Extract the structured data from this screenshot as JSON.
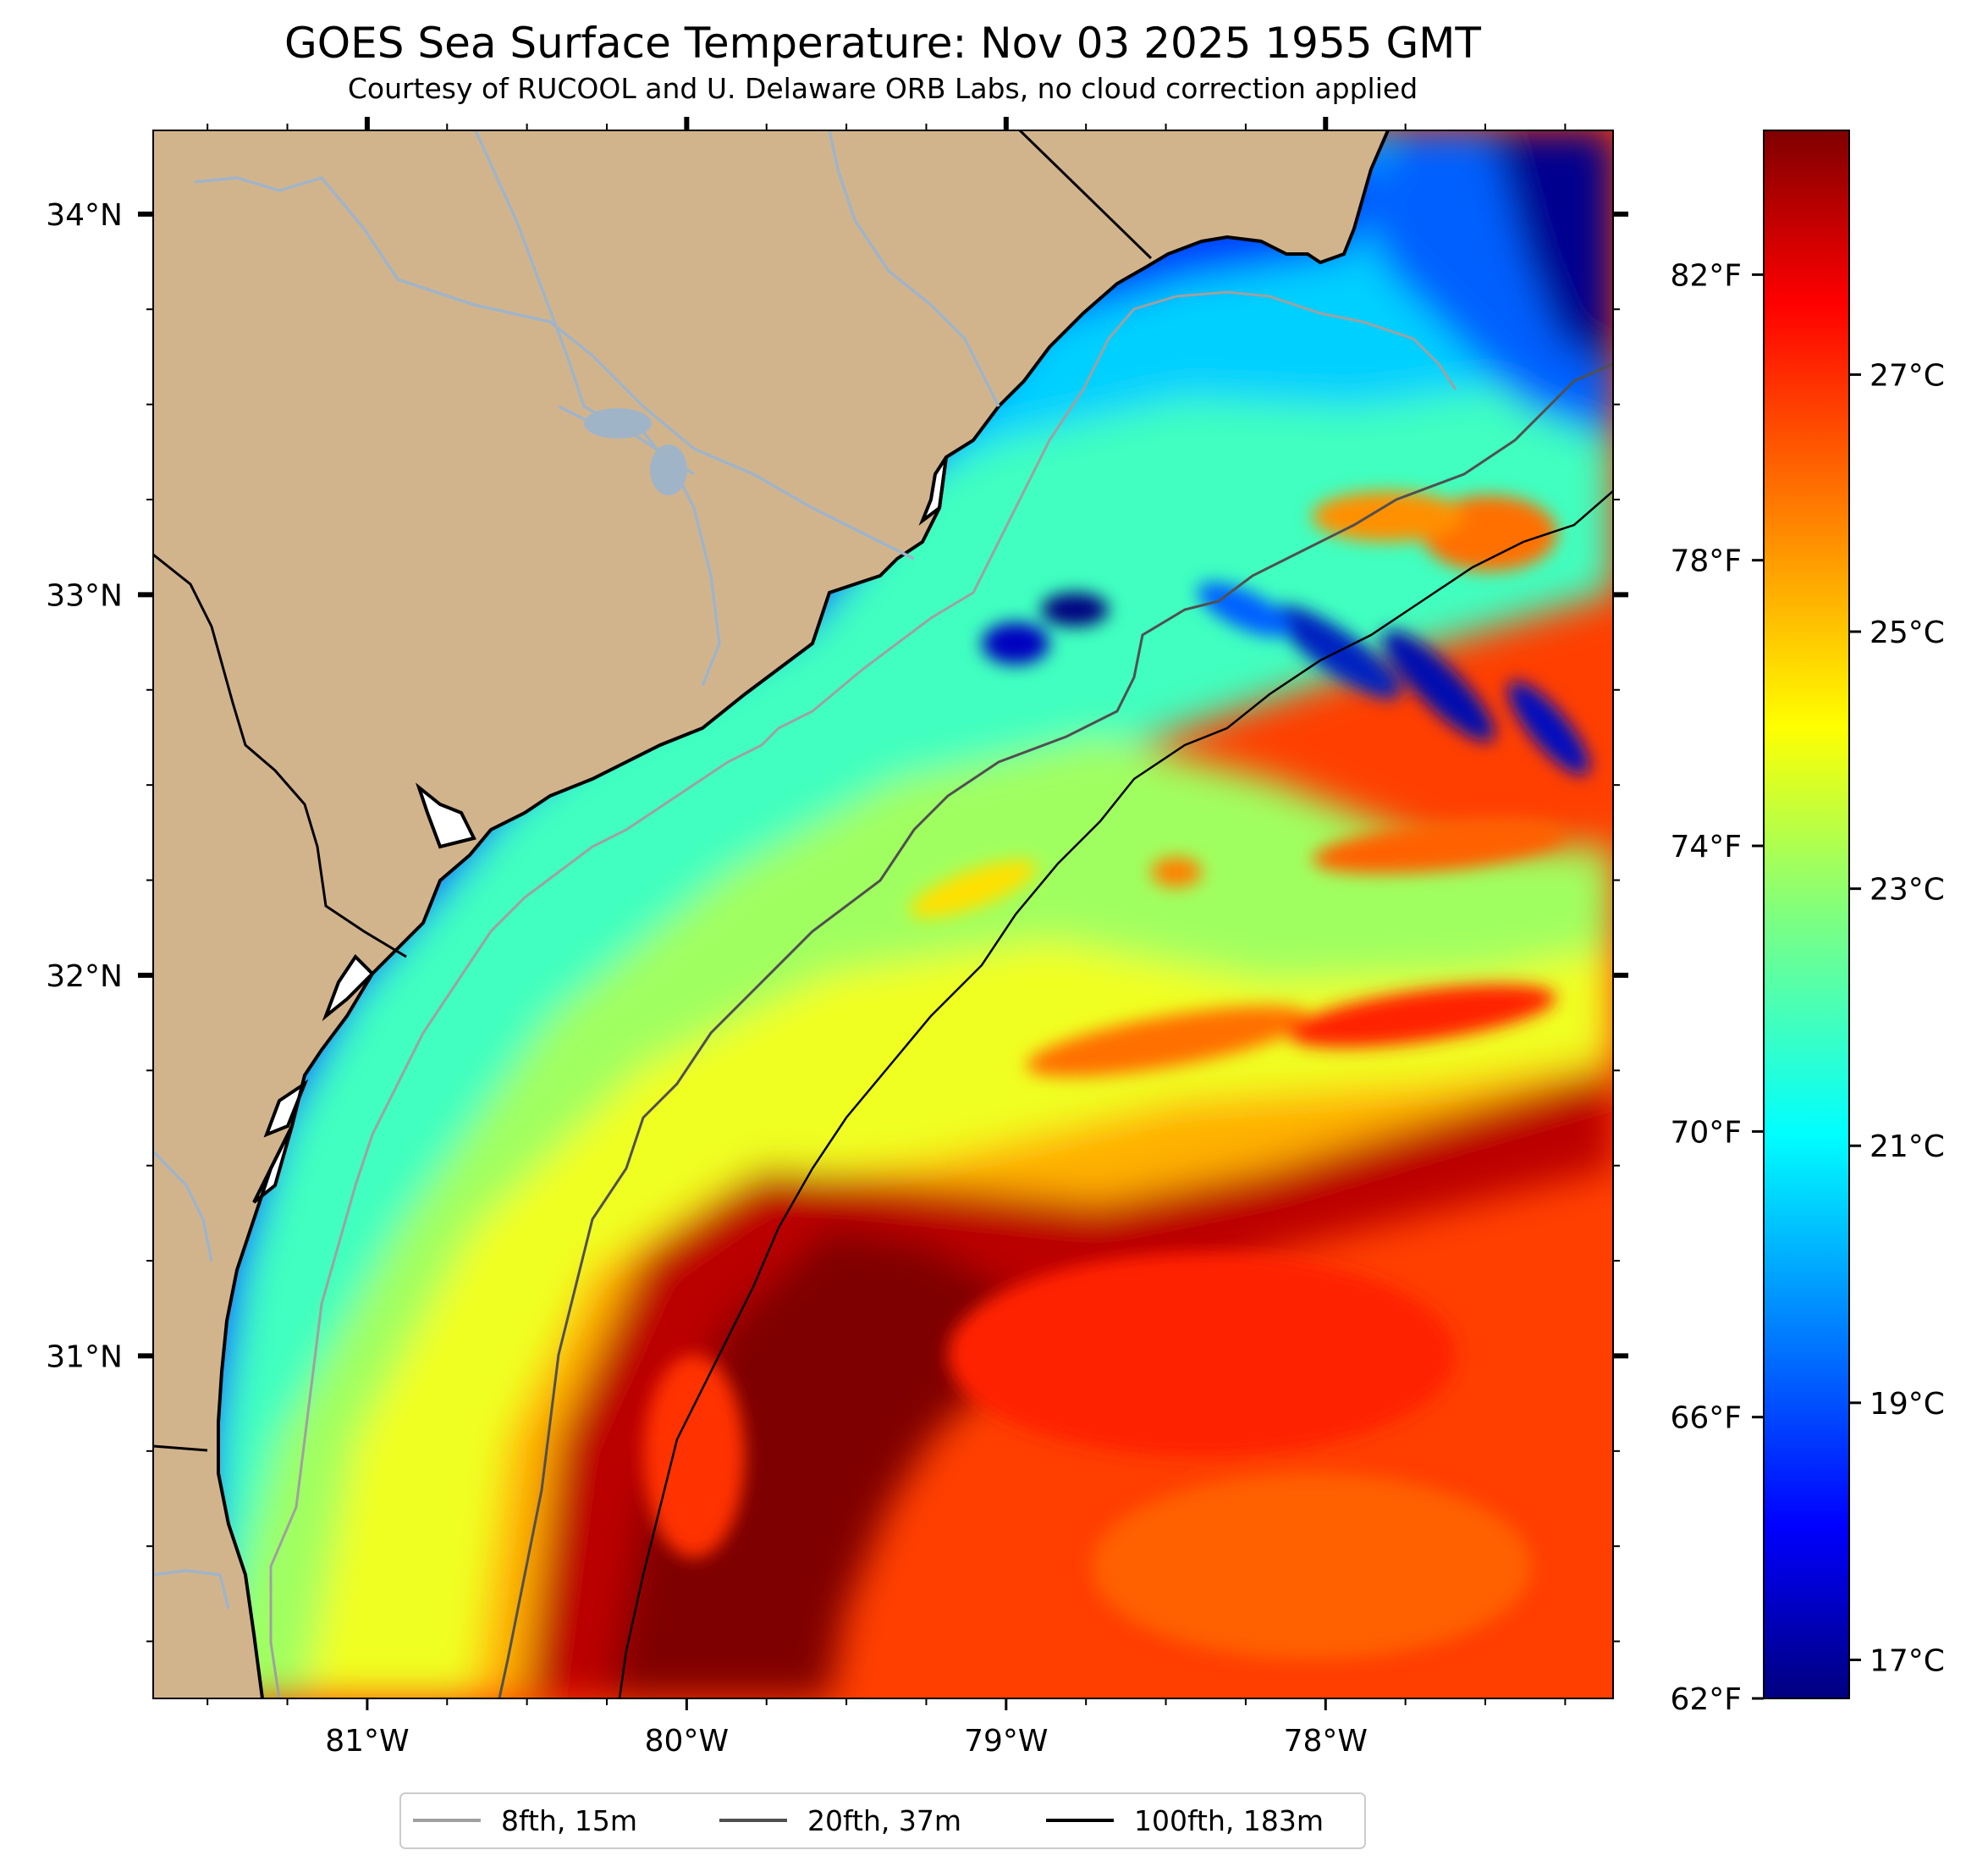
{
  "title": "GOES Sea Surface Temperature: Nov 03 2025 1955 GMT",
  "subtitle": "Courtesy of RUCOOL and U. Delaware ORB Labs, no cloud correction applied",
  "map": {
    "lon_range": [
      -81.67,
      -77.1
    ],
    "lat_range": [
      30.1,
      34.22
    ],
    "longitude_ticks": [
      {
        "value": -81,
        "label": "81°W"
      },
      {
        "value": -80,
        "label": "80°W"
      },
      {
        "value": -79,
        "label": "79°W"
      },
      {
        "value": -78,
        "label": "78°W"
      }
    ],
    "latitude_ticks": [
      {
        "value": 34,
        "label": "34°N"
      },
      {
        "value": 33,
        "label": "33°N"
      },
      {
        "value": 32,
        "label": "32°N"
      },
      {
        "value": 31,
        "label": "31°N"
      }
    ],
    "land_color": "#d2b48c",
    "river_color": "#a0b4c8",
    "colormap": "jet",
    "colorbar_celsius_range": [
      16.7,
      28.9
    ],
    "colorbar_celsius_ticks": [
      {
        "value": 17,
        "label": "17°C"
      },
      {
        "value": 19,
        "label": "19°C"
      },
      {
        "value": 21,
        "label": "21°C"
      },
      {
        "value": 23,
        "label": "23°C"
      },
      {
        "value": 25,
        "label": "25°C"
      },
      {
        "value": 27,
        "label": "27°C"
      }
    ],
    "fahrenheit_ticks": [
      {
        "value": 62,
        "label": "62°F"
      },
      {
        "value": 66,
        "label": "66°F"
      },
      {
        "value": 70,
        "label": "70°F"
      },
      {
        "value": 74,
        "label": "74°F"
      },
      {
        "value": 78,
        "label": "78°F"
      },
      {
        "value": 82,
        "label": "82°F"
      }
    ]
  },
  "legend": [
    {
      "label": "8fth, 15m",
      "color": "#a0a0a0"
    },
    {
      "label": "20fth, 37m",
      "color": "#505050"
    },
    {
      "label": "100fth, 183m",
      "color": "#000000"
    }
  ]
}
